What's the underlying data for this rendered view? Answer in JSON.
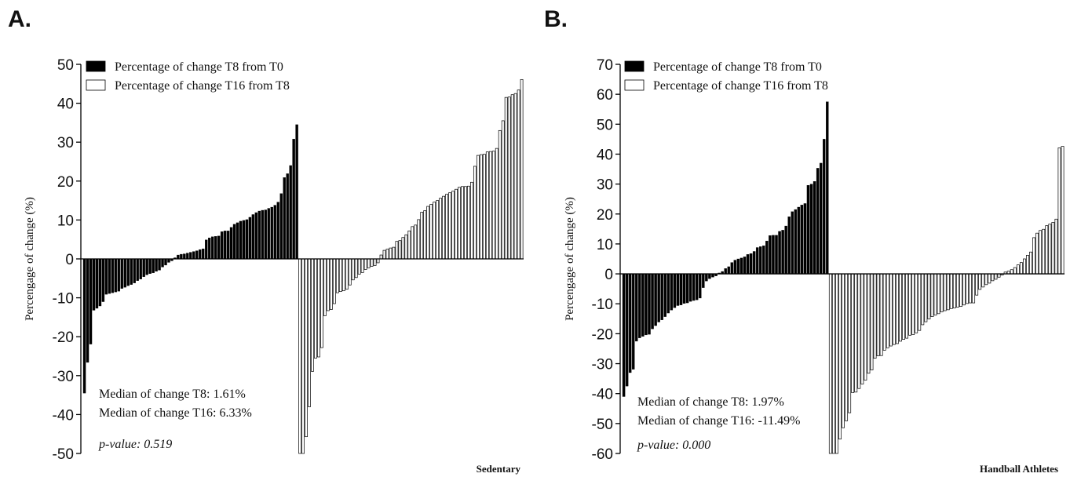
{
  "chart_data": [
    {
      "panel_label": "A.",
      "type": "bar",
      "ylabel": "Percengage of change (%)",
      "group_label": "Sedentary",
      "ylim": [
        -50,
        50
      ],
      "yticks": [
        -50,
        -40,
        -30,
        -20,
        -10,
        0,
        10,
        20,
        30,
        40,
        50
      ],
      "legend": {
        "position": "top-left",
        "entries": [
          {
            "name": "Percentage of change T8 from T0",
            "fill": "#000000"
          },
          {
            "name": "Percentage of change T16 from T8",
            "fill": "#ffffff"
          }
        ]
      },
      "annotations": [
        "Median of change T8: 1.61%",
        "Median of change T16: 6.33%",
        "p-value: 0.519"
      ],
      "series": [
        {
          "name": "Percentage of change T8 from T0",
          "fill": "#000000",
          "values": [
            -34.5,
            -26.6,
            -21.9,
            -13.2,
            -12.7,
            -12.1,
            -11.0,
            -9.1,
            -8.9,
            -8.7,
            -8.5,
            -8.3,
            -7.6,
            -7.3,
            -6.9,
            -6.6,
            -6.2,
            -5.6,
            -5.2,
            -4.6,
            -4.1,
            -3.8,
            -3.6,
            -3.2,
            -2.9,
            -2.1,
            -1.6,
            -0.9,
            -0.5,
            0.3,
            1.0,
            1.2,
            1.3,
            1.5,
            1.7,
            1.9,
            2.1,
            2.4,
            2.6,
            4.9,
            5.4,
            5.7,
            5.8,
            5.9,
            7.0,
            7.2,
            7.2,
            8.1,
            8.9,
            9.3,
            9.7,
            9.9,
            10.1,
            10.7,
            11.4,
            11.9,
            12.3,
            12.5,
            12.6,
            13.0,
            13.3,
            13.8,
            14.6,
            16.8,
            20.9,
            21.9,
            24.0,
            30.8,
            34.5
          ]
        },
        {
          "name": "Percentage of change T16 from T8",
          "fill": "#ffffff",
          "values": [
            -50.0,
            -50.0,
            -45.7,
            -38.0,
            -28.9,
            -25.5,
            -25.2,
            -22.8,
            -14.6,
            -13.3,
            -13.0,
            -11.5,
            -8.7,
            -8.4,
            -8.2,
            -7.8,
            -6.7,
            -5.4,
            -4.8,
            -3.9,
            -3.5,
            -2.7,
            -2.3,
            -1.9,
            -1.7,
            -1.0,
            1.0,
            2.2,
            2.5,
            2.8,
            3.0,
            4.5,
            4.7,
            5.5,
            6.2,
            7.2,
            8.3,
            8.7,
            10.1,
            12.0,
            12.4,
            13.5,
            14.0,
            14.6,
            15.0,
            15.6,
            16.1,
            16.6,
            17.0,
            17.4,
            17.9,
            18.4,
            18.6,
            18.6,
            18.7,
            19.7,
            23.8,
            26.6,
            26.8,
            26.9,
            27.5,
            27.6,
            27.7,
            28.4,
            33.0,
            35.5,
            41.5,
            41.6,
            42.2,
            42.5,
            43.4,
            46.1
          ]
        }
      ]
    },
    {
      "panel_label": "B.",
      "type": "bar",
      "ylabel": "Percengage of change (%)",
      "group_label": "Handball Athletes",
      "ylim": [
        -60,
        70
      ],
      "yticks": [
        -60,
        -50,
        -40,
        -30,
        -20,
        -10,
        0,
        10,
        20,
        30,
        40,
        50,
        60,
        70
      ],
      "legend": {
        "position": "top-left",
        "entries": [
          {
            "name": "Percentage of change T8 from T0",
            "fill": "#000000"
          },
          {
            "name": "Percentage of change T16 from T8",
            "fill": "#ffffff"
          }
        ]
      },
      "annotations": [
        "Median of change T8: 1.97%",
        "Median of change T16: -11.49%",
        "p-value: 0.000"
      ],
      "series": [
        {
          "name": "Percentage of change T8 from T0",
          "fill": "#000000",
          "values": [
            -41.0,
            -37.5,
            -33.0,
            -31.9,
            -22.5,
            -21.4,
            -20.9,
            -20.4,
            -20.2,
            -18.4,
            -17.3,
            -16.1,
            -15.4,
            -14.3,
            -13.1,
            -12.1,
            -11.3,
            -10.6,
            -10.4,
            -9.9,
            -9.7,
            -9.2,
            -8.9,
            -8.7,
            -8.1,
            -4.6,
            -2.4,
            -1.6,
            -1.1,
            -0.7,
            0.3,
            0.8,
            1.8,
            2.4,
            3.8,
            4.6,
            5.0,
            5.3,
            5.7,
            6.5,
            6.8,
            7.5,
            8.8,
            9.1,
            9.4,
            11.0,
            12.8,
            12.9,
            12.9,
            14.2,
            14.6,
            16.0,
            19.1,
            20.8,
            21.5,
            22.3,
            23.0,
            23.5,
            29.6,
            30.0,
            30.9,
            35.3,
            37.0,
            45.0,
            57.5
          ]
        },
        {
          "name": "Percentage of change T16 from T8",
          "fill": "#ffffff",
          "values": [
            -60.0,
            -60.0,
            -60.0,
            -55.2,
            -51.4,
            -49.1,
            -46.4,
            -39.7,
            -39.5,
            -38.3,
            -36.8,
            -35.5,
            -33.2,
            -32.1,
            -28.2,
            -27.4,
            -27.3,
            -25.5,
            -24.7,
            -24.1,
            -23.6,
            -23.3,
            -22.5,
            -21.9,
            -21.5,
            -20.5,
            -20.3,
            -19.7,
            -18.9,
            -17.0,
            -16.0,
            -15.1,
            -14.3,
            -13.8,
            -13.3,
            -12.7,
            -12.3,
            -12.0,
            -11.6,
            -11.4,
            -11.1,
            -10.9,
            -10.4,
            -9.9,
            -9.7,
            -9.7,
            -7.1,
            -5.2,
            -4.4,
            -3.6,
            -3.1,
            -2.3,
            -1.8,
            -1.1,
            -0.4,
            0.6,
            0.9,
            1.4,
            2.1,
            3.0,
            3.8,
            5.0,
            6.2,
            7.3,
            12.1,
            13.6,
            14.5,
            14.9,
            16.1,
            16.6,
            17.2,
            18.3,
            42.1,
            42.6
          ]
        }
      ]
    }
  ]
}
